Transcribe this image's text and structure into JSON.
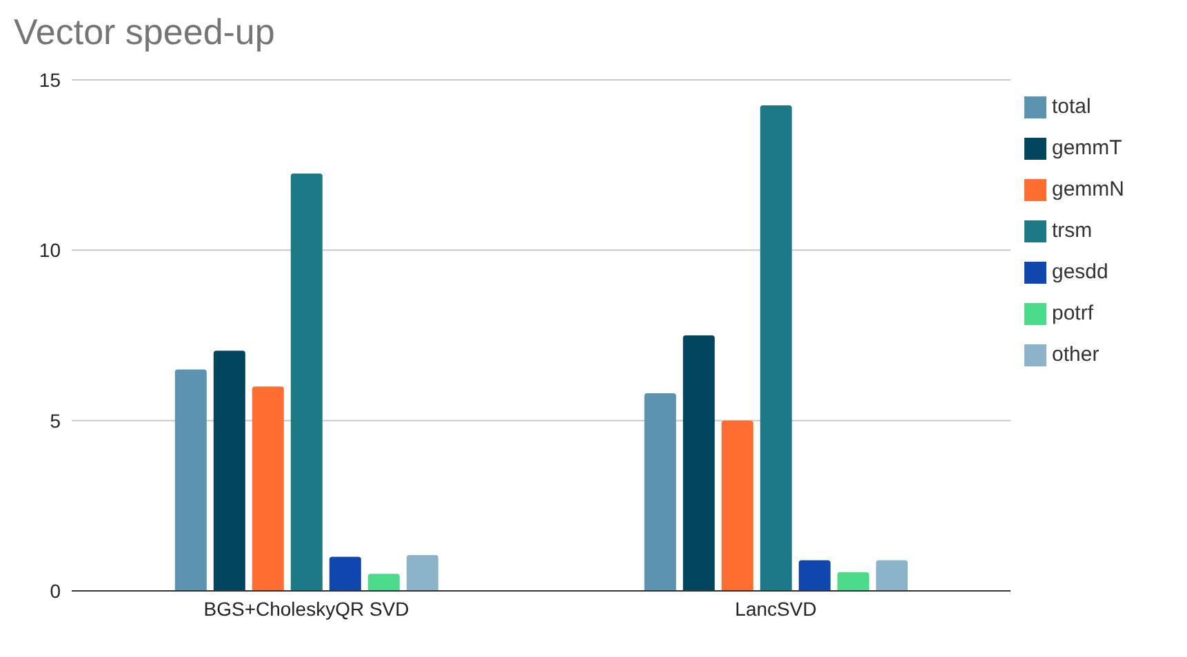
{
  "chart_data": {
    "type": "bar",
    "title": "Vector speed-up",
    "categories": [
      "BGS+CholeskyQR SVD",
      "LancSVD"
    ],
    "series": [
      {
        "name": "total",
        "color": "#5b93b0",
        "values": [
          6.5,
          5.8
        ]
      },
      {
        "name": "gemmT",
        "color": "#00445e",
        "values": [
          7.05,
          7.5
        ]
      },
      {
        "name": "gemmN",
        "color": "#ff6d31",
        "values": [
          6.0,
          5.0
        ]
      },
      {
        "name": "trsm",
        "color": "#1c7a87",
        "values": [
          12.25,
          14.25
        ]
      },
      {
        "name": "gesdd",
        "color": "#0f47af",
        "values": [
          1.0,
          0.9
        ]
      },
      {
        "name": "potrf",
        "color": "#4cdb8a",
        "values": [
          0.5,
          0.55
        ]
      },
      {
        "name": "other",
        "color": "#8bb4c9",
        "values": [
          1.05,
          0.9
        ]
      }
    ],
    "ylim": [
      0,
      15
    ],
    "yticks": [
      0,
      5,
      10,
      15
    ],
    "grid": "y",
    "legend": "right"
  }
}
